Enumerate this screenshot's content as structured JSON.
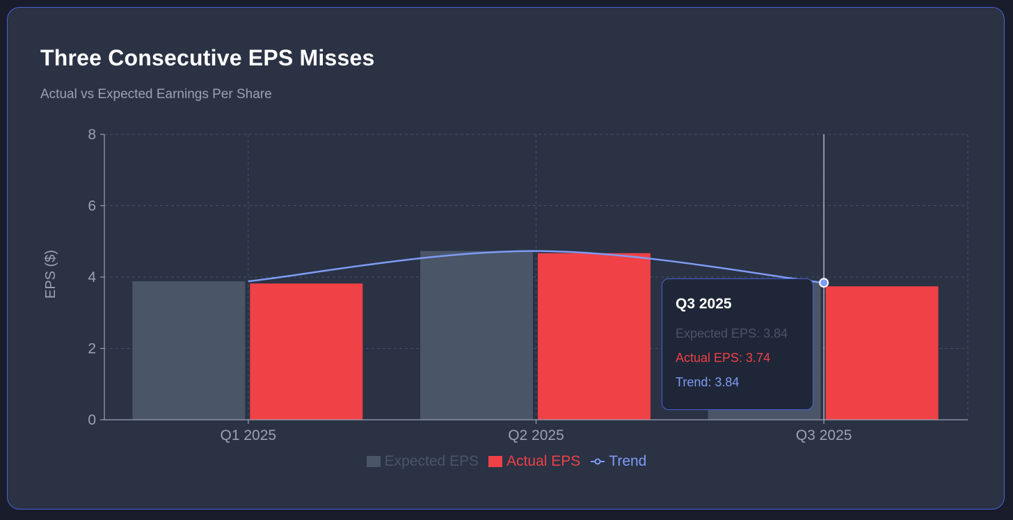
{
  "chart_data": {
    "type": "bar",
    "title": "Three Consecutive EPS Misses",
    "subtitle": "Actual vs Expected Earnings Per Share",
    "categories": [
      "Q1 2025",
      "Q2 2025",
      "Q3 2025"
    ],
    "series": [
      {
        "name": "Expected EPS",
        "type": "bar",
        "color": "#4a5568",
        "values": [
          3.88,
          4.73,
          3.84
        ]
      },
      {
        "name": "Actual EPS",
        "type": "bar",
        "color": "#ef4146",
        "values": [
          3.82,
          4.67,
          3.74
        ]
      },
      {
        "name": "Trend",
        "type": "line",
        "color": "#7f9cf5",
        "values": [
          3.88,
          4.73,
          3.84
        ]
      }
    ],
    "ylabel": "EPS ($)",
    "xlabel": "",
    "ylim": [
      0,
      8
    ],
    "yticks": [
      "0",
      "2",
      "4",
      "6",
      "8"
    ],
    "grid": true,
    "legend_position": "bottom-center",
    "tooltip": {
      "category": "Q3 2025",
      "rows": [
        {
          "text": "Expected EPS: 3.84",
          "color": "#4a5568"
        },
        {
          "text": "Actual EPS: 3.74",
          "color": "#ef4146"
        },
        {
          "text": "Trend: 3.84",
          "color": "#7f9cf5"
        }
      ]
    }
  }
}
